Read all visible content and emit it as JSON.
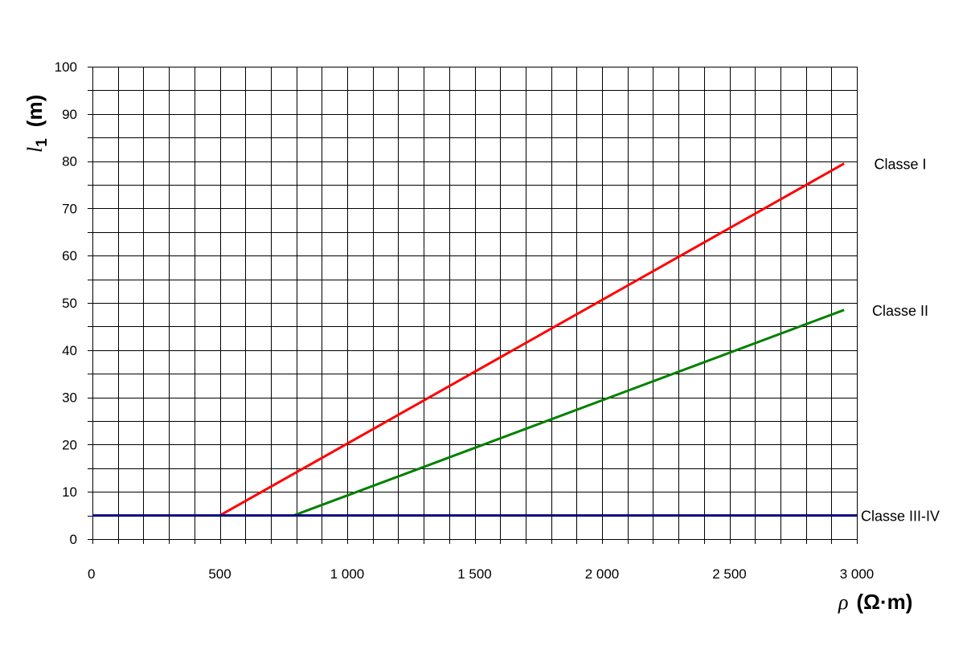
{
  "chart_data": {
    "type": "line",
    "title": "",
    "xlabel": {
      "symbol": "ρ",
      "unit": "(Ω·m)"
    },
    "ylabel": {
      "symbol": "l",
      "subscript": "1",
      "unit": "(m)"
    },
    "xlim": [
      0,
      3000
    ],
    "ylim": [
      0,
      100
    ],
    "x_ticks": [
      0,
      500,
      1000,
      1500,
      2000,
      2500,
      3000
    ],
    "x_tick_labels": [
      "0",
      "500",
      "1 000",
      "1 500",
      "2 000",
      "2 500",
      "3 000"
    ],
    "y_ticks": [
      0,
      10,
      20,
      30,
      40,
      50,
      60,
      70,
      80,
      90,
      100
    ],
    "y_tick_labels": [
      "0",
      "10",
      "20",
      "30",
      "40",
      "50",
      "60",
      "70",
      "80",
      "90",
      "100"
    ],
    "grid": true,
    "grid_minor_x_step": 100,
    "grid_minor_y_step": 5,
    "series": [
      {
        "name": "Classe I",
        "color": "#ff0000",
        "points": [
          [
            500,
            5
          ],
          [
            2950,
            79.5
          ]
        ]
      },
      {
        "name": "Classe II",
        "color": "#008000",
        "points": [
          [
            790,
            5
          ],
          [
            2950,
            48.5
          ]
        ]
      },
      {
        "name": "Classe III-IV",
        "color": "#000080",
        "points": [
          [
            0,
            5
          ],
          [
            3000,
            5
          ]
        ]
      }
    ]
  }
}
